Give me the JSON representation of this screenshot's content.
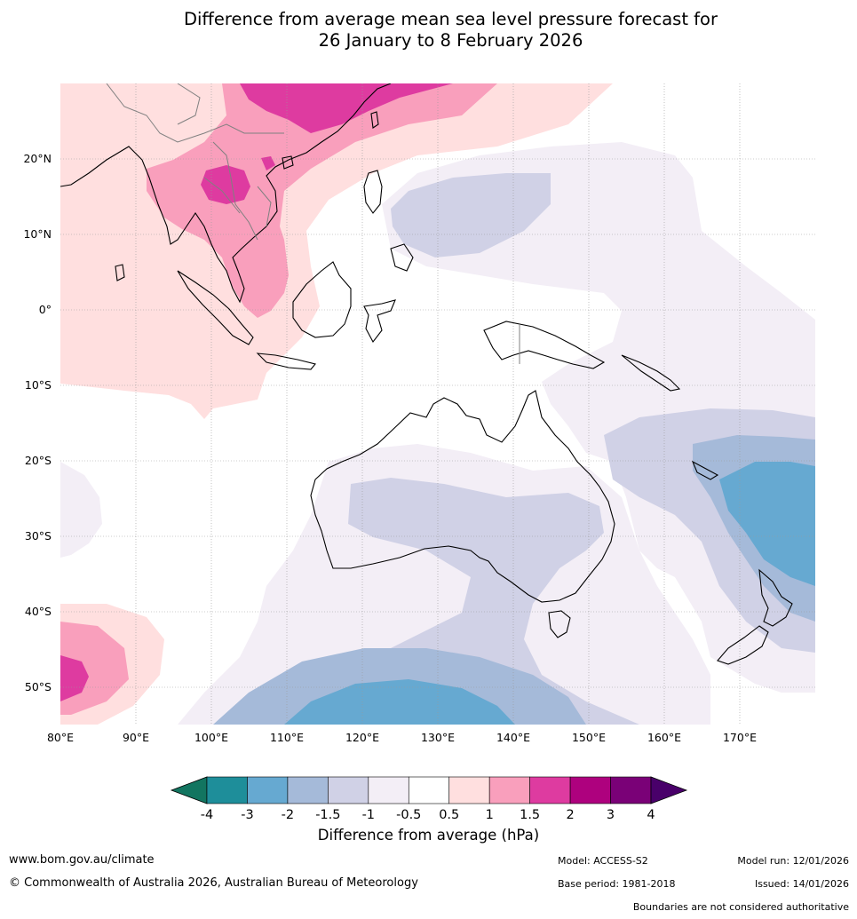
{
  "title": {
    "line1": "Difference from average mean sea level pressure forecast for",
    "line2": "26 January to 8 February 2026"
  },
  "map": {
    "lat_ticks": [
      "20°N",
      "10°N",
      "0°",
      "10°S",
      "20°S",
      "30°S",
      "40°S",
      "50°S"
    ],
    "lon_ticks": [
      "80°E",
      "90°E",
      "100°E",
      "110°E",
      "120°E",
      "130°E",
      "140°E",
      "150°E",
      "160°E",
      "170°E"
    ],
    "lat_range": [
      -55,
      30
    ],
    "lon_range": [
      80,
      180
    ]
  },
  "colorbar": {
    "title": "Difference from average (hPa)",
    "tick_labels": [
      "-4",
      "-3",
      "-2",
      "-1.5",
      "-1",
      "-0.5",
      "0.5",
      "1",
      "1.5",
      "2",
      "3",
      "4"
    ],
    "colors": [
      "#127560",
      "#1e8e9a",
      "#66a9d1",
      "#a5bad9",
      "#d0d1e6",
      "#f3eef6",
      "#ffffff",
      "#ffdfdf",
      "#f99fbc",
      "#de3ba0",
      "#ae017e",
      "#7a0177",
      "#49006a"
    ]
  },
  "footer": {
    "website": "www.bom.gov.au/climate",
    "copyright": "© Commonwealth of Australia 2026, Australian Bureau of Meteorology",
    "model": "Model: ACCESS-S2",
    "base_period": "Base period: 1981-2018",
    "model_run": "Model run: 12/01/2026",
    "issued": "Issued: 14/01/2026",
    "disclaimer": "Boundaries are not considered authoritative"
  }
}
